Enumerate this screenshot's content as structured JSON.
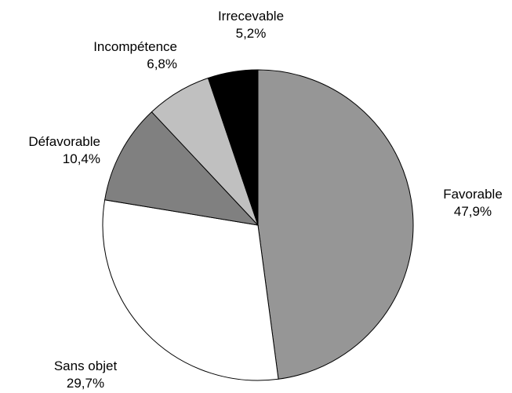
{
  "chart_data": {
    "type": "pie",
    "start_angle_deg": 0,
    "direction": "clockwise",
    "slices": [
      {
        "label": "Favorable",
        "value_label": "47,9%",
        "value": 47.9,
        "color": "#969696"
      },
      {
        "label": "Sans objet",
        "value_label": "29,7%",
        "value": 29.7,
        "color": "#ffffff"
      },
      {
        "label": "Défavorable",
        "value_label": "10,4%",
        "value": 10.4,
        "color": "#808080"
      },
      {
        "label": "Incompétence",
        "value_label": "6,8%",
        "value": 6.8,
        "color": "#c0c0c0"
      },
      {
        "label": "Irrecevable",
        "value_label": "5,2%",
        "value": 5.2,
        "color": "#000000"
      }
    ]
  }
}
